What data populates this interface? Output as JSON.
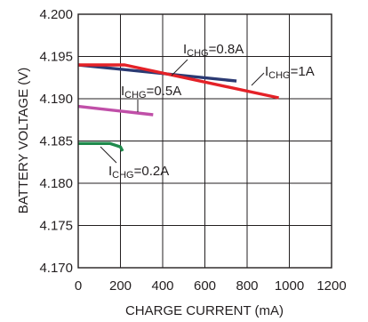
{
  "chart_data": {
    "type": "line",
    "xlabel": "CHARGE CURRENT (mA)",
    "ylabel": "BATTERY VOLTAGE (V)",
    "xlim": [
      0,
      1200
    ],
    "ylim": [
      4.17,
      4.2
    ],
    "x_ticks": [
      "0",
      "200",
      "400",
      "600",
      "800",
      "1000",
      "1200"
    ],
    "y_ticks": [
      "4.170",
      "4.175",
      "4.180",
      "4.185",
      "4.190",
      "4.195",
      "4.200"
    ],
    "grid": true,
    "series": [
      {
        "name_main": "I",
        "name_sub": "CHG",
        "name_tail": "=0.2A",
        "color": "#1f8a4c",
        "points": [
          [
            0,
            4.1847
          ],
          [
            150,
            4.1847
          ],
          [
            200,
            4.1843
          ],
          [
            210,
            4.1838
          ]
        ]
      },
      {
        "name_main": "I",
        "name_sub": "CHG",
        "name_tail": "=0.5A",
        "color": "#c04fa8",
        "points": [
          [
            0,
            4.1891
          ],
          [
            355,
            4.1881
          ]
        ]
      },
      {
        "name_main": "I",
        "name_sub": "CHG",
        "name_tail": "=0.8A",
        "color": "#2b3a73",
        "points": [
          [
            0,
            4.194
          ],
          [
            750,
            4.1921
          ]
        ]
      },
      {
        "name_main": "I",
        "name_sub": "CHG",
        "name_tail": "=1A",
        "color": "#e42127",
        "points": [
          [
            0,
            4.194
          ],
          [
            220,
            4.194
          ],
          [
            950,
            4.1901
          ]
        ]
      }
    ]
  }
}
